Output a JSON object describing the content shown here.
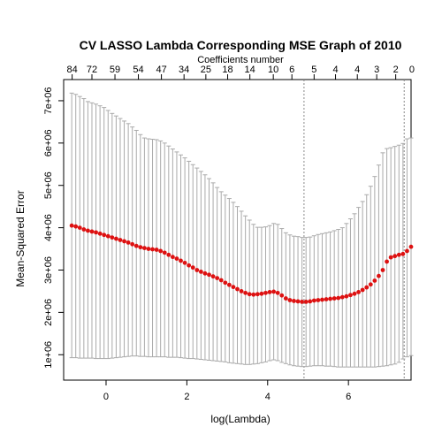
{
  "chart_data": {
    "type": "scatter",
    "title": "CV LASSO Lambda Corresponding MSE Graph of 2010",
    "top_axis_label": "Coefficients number",
    "xlabel": "log(Lambda)",
    "ylabel": "Mean-Squared Error",
    "xlim": [
      -1.05,
      7.55
    ],
    "ylim": [
      400000,
      7500000
    ],
    "x_ticks": [
      0,
      2,
      4,
      6
    ],
    "x_tick_labels": [
      "0",
      "2",
      "4",
      "6"
    ],
    "y_ticks": [
      1000000,
      2000000,
      3000000,
      4000000,
      5000000,
      6000000,
      7000000
    ],
    "y_tick_labels": [
      "1e+06",
      "2e+06",
      "3e+06",
      "4e+06",
      "5e+06",
      "6e+06",
      "7e+06"
    ],
    "top_ticks_x": [
      -0.84,
      -0.35,
      0.22,
      0.8,
      1.37,
      1.93,
      2.47,
      3.01,
      3.56,
      4.14,
      4.6,
      5.15,
      5.68,
      6.22,
      6.7,
      7.17,
      7.57
    ],
    "top_tick_labels": [
      "84",
      "72",
      "59",
      "54",
      "47",
      "34",
      "25",
      "18",
      "14",
      "10",
      "6",
      "5",
      "4",
      "4",
      "3",
      "2",
      "0"
    ],
    "vlines": [
      4.9,
      7.38
    ],
    "colors": {
      "points": "#dd1111",
      "error_bars": "#aaaaaa",
      "vlines": "#888888",
      "axis": "#000000"
    },
    "series": [
      {
        "x": [
          -0.85,
          -0.75,
          -0.65,
          -0.55,
          -0.45,
          -0.35,
          -0.25,
          -0.15,
          -0.05,
          0.05,
          0.15,
          0.25,
          0.35,
          0.45,
          0.55,
          0.65,
          0.75,
          0.85,
          0.95,
          1.05,
          1.15,
          1.25,
          1.35,
          1.45,
          1.55,
          1.65,
          1.75,
          1.85,
          1.95,
          2.05,
          2.15,
          2.25,
          2.35,
          2.45,
          2.55,
          2.65,
          2.75,
          2.85,
          2.95,
          3.05,
          3.15,
          3.25,
          3.35,
          3.45,
          3.55,
          3.65,
          3.75,
          3.85,
          3.95,
          4.05,
          4.15,
          4.25,
          4.35,
          4.45,
          4.55,
          4.65,
          4.75,
          4.85,
          4.95,
          5.05,
          5.15,
          5.25,
          5.35,
          5.45,
          5.55,
          5.65,
          5.75,
          5.85,
          5.95,
          6.05,
          6.15,
          6.25,
          6.35,
          6.45,
          6.55,
          6.65,
          6.75,
          6.85,
          6.95,
          7.05,
          7.15,
          7.25,
          7.35
        ],
        "y": [
          4050000,
          4030000,
          4000000,
          3960000,
          3930000,
          3910000,
          3890000,
          3860000,
          3830000,
          3800000,
          3770000,
          3740000,
          3710000,
          3680000,
          3650000,
          3610000,
          3570000,
          3540000,
          3520000,
          3500000,
          3490000,
          3480000,
          3450000,
          3410000,
          3360000,
          3310000,
          3270000,
          3220000,
          3170000,
          3110000,
          3060000,
          3000000,
          2960000,
          2920000,
          2890000,
          2850000,
          2810000,
          2760000,
          2700000,
          2650000,
          2600000,
          2550000,
          2500000,
          2460000,
          2430000,
          2420000,
          2430000,
          2440000,
          2460000,
          2480000,
          2490000,
          2460000,
          2400000,
          2330000,
          2290000,
          2270000,
          2260000,
          2250000,
          2250000,
          2260000,
          2280000,
          2290000,
          2300000,
          2310000,
          2320000,
          2330000,
          2340000,
          2360000,
          2380000,
          2410000,
          2440000,
          2480000,
          2530000,
          2590000,
          2660000,
          2750000,
          2860000,
          3000000,
          3200000,
          3300000,
          3330000,
          3360000,
          3380000
        ],
        "upper": [
          7180000,
          7150000,
          7100000,
          7050000,
          6980000,
          6950000,
          6920000,
          6880000,
          6840000,
          6770000,
          6700000,
          6640000,
          6580000,
          6520000,
          6460000,
          6380000,
          6300000,
          6200000,
          6120000,
          6100000,
          6090000,
          6080000,
          6050000,
          6000000,
          5930000,
          5860000,
          5790000,
          5720000,
          5650000,
          5570000,
          5490000,
          5410000,
          5330000,
          5250000,
          5160000,
          5060000,
          4950000,
          4850000,
          4770000,
          4690000,
          4600000,
          4500000,
          4390000,
          4280000,
          4180000,
          4080000,
          4010000,
          4010000,
          4020000,
          4050000,
          4100000,
          4080000,
          3980000,
          3880000,
          3830000,
          3800000,
          3790000,
          3770000,
          3770000,
          3780000,
          3810000,
          3840000,
          3860000,
          3880000,
          3900000,
          3930000,
          3960000,
          4000000,
          4100000,
          4210000,
          4330000,
          4480000,
          4620000,
          4780000,
          4980000,
          5210000,
          5480000,
          5770000,
          5870000,
          5890000,
          5920000,
          5950000,
          5990000
        ],
        "lower": [
          930000,
          930000,
          920000,
          920000,
          920000,
          920000,
          910000,
          910000,
          910000,
          910000,
          920000,
          930000,
          940000,
          950000,
          960000,
          970000,
          970000,
          960000,
          960000,
          950000,
          950000,
          950000,
          950000,
          950000,
          940000,
          940000,
          940000,
          930000,
          920000,
          910000,
          910000,
          900000,
          890000,
          880000,
          870000,
          860000,
          850000,
          840000,
          830000,
          810000,
          800000,
          790000,
          780000,
          770000,
          770000,
          780000,
          790000,
          810000,
          830000,
          860000,
          880000,
          860000,
          820000,
          790000,
          760000,
          740000,
          730000,
          720000,
          720000,
          730000,
          740000,
          740000,
          740000,
          730000,
          730000,
          720000,
          710000,
          710000,
          710000,
          710000,
          710000,
          710000,
          710000,
          710000,
          710000,
          710000,
          720000,
          730000,
          740000,
          760000,
          780000,
          820000,
          900000
        ]
      }
    ],
    "extra_points": [
      {
        "x": 7.45,
        "y": 3450000,
        "upper": 6100000,
        "lower": 950000
      },
      {
        "x": 7.55,
        "y": 3550000,
        "upper": 6120000,
        "lower": 980000
      }
    ]
  }
}
